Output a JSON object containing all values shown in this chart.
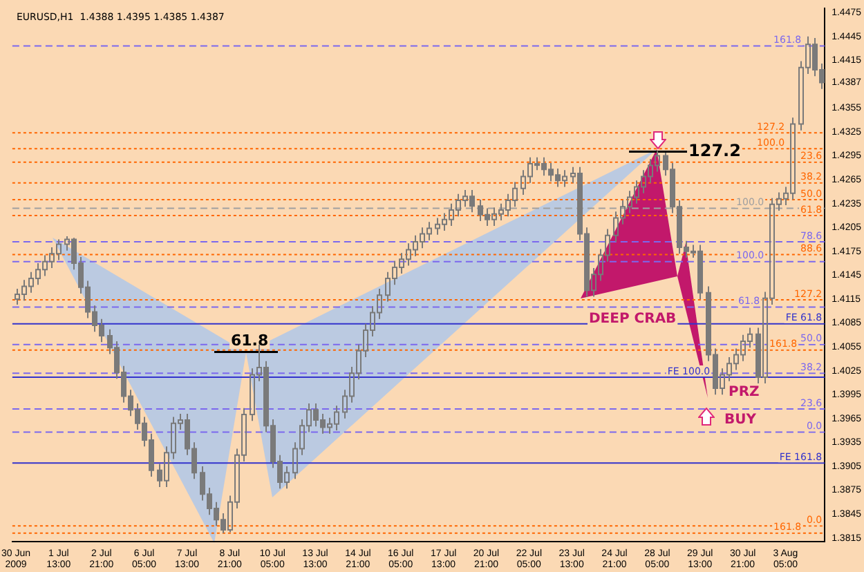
{
  "chart_data": {
    "type": "candlestick",
    "title": "EURUSD,H1  1.4388 1.4395 1.4385 1.4387",
    "color": "#7a7a7a",
    "categories": [
      "30 Jun 2009",
      null,
      null,
      null,
      null,
      null,
      "1 Jul 13:00",
      null,
      null,
      null,
      null,
      null,
      "2 Jul 21:00",
      null,
      null,
      null,
      null,
      null,
      "6 Jul 05:00",
      null,
      null,
      null,
      null,
      null,
      "7 Jul 13:00",
      null,
      null,
      null,
      null,
      null,
      "8 Jul 21:00",
      null,
      null,
      null,
      null,
      null,
      "10 Jul 05:00",
      null,
      null,
      null,
      null,
      null,
      "13 Jul 13:00",
      null,
      null,
      null,
      null,
      null,
      "14 Jul 21:00",
      null,
      null,
      null,
      null,
      null,
      "16 Jul 05:00",
      null,
      null,
      null,
      null,
      null,
      "17 Jul 13:00",
      null,
      null,
      null,
      null,
      null,
      "20 Jul 21:00",
      null,
      null,
      null,
      null,
      null,
      "22 Jul 05:00",
      null,
      null,
      null,
      null,
      null,
      "23 Jul 13:00",
      null,
      null,
      null,
      null,
      null,
      "24 Jul 21:00",
      null,
      null,
      null,
      null,
      null,
      "28 Jul 05:00",
      null,
      null,
      null,
      null,
      null,
      "29 Jul 13:00",
      null,
      null,
      null,
      null,
      null,
      "30 Jul 21:00",
      null,
      null,
      null,
      null,
      null,
      "3 Aug 05:00",
      null,
      null,
      null,
      null,
      null
    ],
    "ohlc": [
      [
        1.4115,
        1.4128,
        1.4108,
        1.4121
      ],
      [
        1.4121,
        1.4139,
        1.4113,
        1.4131
      ],
      [
        1.4131,
        1.4149,
        1.4123,
        1.4141
      ],
      [
        1.4141,
        1.416,
        1.4133,
        1.4152
      ],
      [
        1.4152,
        1.417,
        1.4144,
        1.4162
      ],
      [
        1.4162,
        1.418,
        1.4154,
        1.4172
      ],
      [
        1.4172,
        1.419,
        1.4164,
        1.4184
      ],
      [
        1.4184,
        1.4194,
        1.4176,
        1.419
      ],
      [
        1.419,
        1.4192,
        1.4152,
        1.416
      ],
      [
        1.416,
        1.4168,
        1.4122,
        1.413
      ],
      [
        1.413,
        1.4138,
        1.4091,
        1.4099
      ],
      [
        1.4099,
        1.4107,
        1.4074,
        1.4082
      ],
      [
        1.4082,
        1.409,
        1.4061,
        1.4069
      ],
      [
        1.4069,
        1.4077,
        1.4046,
        1.4054
      ],
      [
        1.4054,
        1.4062,
        1.4015,
        1.4023
      ],
      [
        1.4023,
        1.4031,
        1.3985,
        1.3993
      ],
      [
        1.3993,
        1.4001,
        1.3968,
        1.3976
      ],
      [
        1.3976,
        1.3984,
        1.3951,
        1.3959
      ],
      [
        1.3959,
        1.3967,
        1.393,
        1.3938
      ],
      [
        1.3938,
        1.3946,
        1.3892,
        1.39
      ],
      [
        1.39,
        1.3908,
        1.3879,
        1.3887
      ],
      [
        1.3887,
        1.393,
        1.3879,
        1.3922
      ],
      [
        1.3922,
        1.3967,
        1.3914,
        1.3959
      ],
      [
        1.3959,
        1.3971,
        1.3951,
        1.3963
      ],
      [
        1.3963,
        1.3971,
        1.3919,
        1.3927
      ],
      [
        1.3927,
        1.3935,
        1.3889,
        1.3897
      ],
      [
        1.3897,
        1.3905,
        1.3862,
        1.387
      ],
      [
        1.387,
        1.3878,
        1.3844,
        1.3852
      ],
      [
        1.3852,
        1.386,
        1.383,
        1.3838
      ],
      [
        1.3838,
        1.3846,
        1.3821,
        1.3825
      ],
      [
        1.3825,
        1.3868,
        1.3822,
        1.386
      ],
      [
        1.386,
        1.3927,
        1.3852,
        1.3919
      ],
      [
        1.3919,
        1.3978,
        1.3911,
        1.397
      ],
      [
        1.397,
        1.4028,
        1.3962,
        1.402
      ],
      [
        1.402,
        1.4058,
        1.4012,
        1.4029
      ],
      [
        1.4029,
        1.4037,
        1.3948,
        1.3956
      ],
      [
        1.3956,
        1.3964,
        1.3903,
        1.3911
      ],
      [
        1.3911,
        1.3919,
        1.3877,
        1.3885
      ],
      [
        1.3885,
        1.3905,
        1.3877,
        1.3897
      ],
      [
        1.3897,
        1.3935,
        1.3889,
        1.3927
      ],
      [
        1.3927,
        1.3964,
        1.3919,
        1.3956
      ],
      [
        1.3956,
        1.3984,
        1.3948,
        1.3976
      ],
      [
        1.3976,
        1.3984,
        1.3955,
        1.3963
      ],
      [
        1.3963,
        1.3971,
        1.3946,
        1.3954
      ],
      [
        1.3954,
        1.3966,
        1.3946,
        1.3958
      ],
      [
        1.3958,
        1.3981,
        1.395,
        1.3973
      ],
      [
        1.3973,
        1.4001,
        1.3965,
        1.3993
      ],
      [
        1.3993,
        1.403,
        1.3985,
        1.4022
      ],
      [
        1.4022,
        1.4058,
        1.4014,
        1.405
      ],
      [
        1.405,
        1.4084,
        1.4042,
        1.4076
      ],
      [
        1.4076,
        1.4106,
        1.4068,
        1.4098
      ],
      [
        1.4098,
        1.4128,
        1.409,
        1.412
      ],
      [
        1.412,
        1.4149,
        1.4112,
        1.4141
      ],
      [
        1.4141,
        1.4163,
        1.4133,
        1.4155
      ],
      [
        1.4155,
        1.4173,
        1.4147,
        1.4165
      ],
      [
        1.4165,
        1.4185,
        1.4157,
        1.4177
      ],
      [
        1.4177,
        1.4195,
        1.4169,
        1.4187
      ],
      [
        1.4187,
        1.4205,
        1.4179,
        1.4197
      ],
      [
        1.4197,
        1.4212,
        1.4189,
        1.4204
      ],
      [
        1.4204,
        1.4217,
        1.4196,
        1.4209
      ],
      [
        1.4209,
        1.4223,
        1.4201,
        1.4215
      ],
      [
        1.4215,
        1.4235,
        1.4207,
        1.4227
      ],
      [
        1.4227,
        1.4247,
        1.4219,
        1.4239
      ],
      [
        1.4239,
        1.4252,
        1.4231,
        1.4244
      ],
      [
        1.4244,
        1.4252,
        1.4224,
        1.4232
      ],
      [
        1.4232,
        1.424,
        1.4213,
        1.4221
      ],
      [
        1.4221,
        1.4229,
        1.4207,
        1.4215
      ],
      [
        1.4215,
        1.423,
        1.4207,
        1.4222
      ],
      [
        1.4222,
        1.4235,
        1.4214,
        1.4227
      ],
      [
        1.4227,
        1.4247,
        1.4219,
        1.4239
      ],
      [
        1.4239,
        1.4262,
        1.4231,
        1.4254
      ],
      [
        1.4254,
        1.4277,
        1.4246,
        1.4269
      ],
      [
        1.4269,
        1.4293,
        1.4261,
        1.4285
      ],
      [
        1.4285,
        1.4293,
        1.4277,
        1.4285
      ],
      [
        1.4285,
        1.4293,
        1.427,
        1.4278
      ],
      [
        1.4278,
        1.4286,
        1.4263,
        1.4271
      ],
      [
        1.4271,
        1.4279,
        1.4256,
        1.4264
      ],
      [
        1.4264,
        1.4277,
        1.4256,
        1.4269
      ],
      [
        1.4269,
        1.4281,
        1.4261,
        1.4273
      ],
      [
        1.4273,
        1.4281,
        1.4189,
        1.4197
      ],
      [
        1.4197,
        1.4205,
        1.4118,
        1.4126
      ],
      [
        1.4126,
        1.4154,
        1.4118,
        1.4146
      ],
      [
        1.4146,
        1.4178,
        1.4138,
        1.417
      ],
      [
        1.417,
        1.4203,
        1.4162,
        1.4195
      ],
      [
        1.4195,
        1.4225,
        1.4187,
        1.4217
      ],
      [
        1.4217,
        1.4239,
        1.4209,
        1.4231
      ],
      [
        1.4231,
        1.4251,
        1.4223,
        1.4243
      ],
      [
        1.4243,
        1.4264,
        1.4235,
        1.4256
      ],
      [
        1.4256,
        1.4277,
        1.4248,
        1.4269
      ],
      [
        1.4269,
        1.4291,
        1.4261,
        1.4283
      ],
      [
        1.4283,
        1.4301,
        1.4275,
        1.4295
      ],
      [
        1.4295,
        1.4299,
        1.427,
        1.4278
      ],
      [
        1.4278,
        1.4286,
        1.4223,
        1.4231
      ],
      [
        1.4231,
        1.4239,
        1.4172,
        1.418
      ],
      [
        1.418,
        1.4188,
        1.4167,
        1.4175
      ],
      [
        1.4175,
        1.4183,
        1.4167,
        1.4175
      ],
      [
        1.4175,
        1.4183,
        1.4115,
        1.4123
      ],
      [
        1.4123,
        1.4131,
        1.4037,
        1.4045
      ],
      [
        1.4045,
        1.4053,
        1.3995,
        1.4003
      ],
      [
        1.4003,
        1.4028,
        1.3995,
        1.402
      ],
      [
        1.402,
        1.4042,
        1.4012,
        1.4034
      ],
      [
        1.4034,
        1.4053,
        1.4026,
        1.4045
      ],
      [
        1.4045,
        1.407,
        1.4037,
        1.4062
      ],
      [
        1.4062,
        1.4079,
        1.4054,
        1.4071
      ],
      [
        1.4071,
        1.4079,
        1.4009,
        1.4017
      ],
      [
        1.4017,
        1.4124,
        1.4009,
        1.4116
      ],
      [
        1.4116,
        1.4242,
        1.4108,
        1.4234
      ],
      [
        1.4234,
        1.4249,
        1.4226,
        1.4241
      ],
      [
        1.4241,
        1.4256,
        1.4233,
        1.4248
      ],
      [
        1.4248,
        1.4343,
        1.424,
        1.4335
      ],
      [
        1.4335,
        1.4414,
        1.4327,
        1.4406
      ],
      [
        1.4406,
        1.4445,
        1.4398,
        1.4435
      ],
      [
        1.4435,
        1.4443,
        1.4395,
        1.4403
      ],
      [
        1.4403,
        1.4411,
        1.4379,
        1.4387
      ]
    ],
    "ylim": [
      1.381,
      1.448
    ],
    "yticks": [
      1.4475,
      1.4445,
      1.4415,
      {
        "value": 1.4387,
        "label": "1.4387"
      },
      1.4355,
      1.4325,
      1.4295,
      1.4265,
      1.4235,
      1.4205,
      1.4175,
      1.4145,
      1.4115,
      1.4085,
      1.4055,
      1.4025,
      1.3995,
      1.3965,
      1.3935,
      1.3905,
      1.3875,
      1.3845,
      1.3815
    ],
    "ref_lines": [
      {
        "axis": "y",
        "value": 1.4433,
        "color": "#7b68ee",
        "line_style": "dashed"
      },
      {
        "axis": "y",
        "value": 1.4324,
        "color": "#ff6600",
        "line_style": "dotted"
      },
      {
        "axis": "y",
        "value": 1.4304,
        "color": "#ff6600",
        "line_style": "dotted"
      },
      {
        "axis": "y",
        "value": 1.4287,
        "color": "#ff6600",
        "line_style": "dotted"
      },
      {
        "axis": "y",
        "value": 1.4261,
        "color": "#ff6600",
        "line_style": "dotted"
      },
      {
        "axis": "y",
        "value": 1.424,
        "color": "#ff6600",
        "line_style": "dotted"
      },
      {
        "axis": "y",
        "value": 1.4229,
        "color": "#a0a0a0",
        "line_style": "dashed"
      },
      {
        "axis": "y",
        "value": 1.422,
        "color": "#ff6600",
        "line_style": "dotted"
      },
      {
        "axis": "y",
        "value": 1.4187,
        "color": "#7b68ee",
        "line_style": "dashed"
      },
      {
        "axis": "y",
        "value": 1.4171,
        "color": "#ff6600",
        "line_style": "dotted"
      },
      {
        "axis": "y",
        "value": 1.4162,
        "color": "#7b68ee",
        "line_style": "dashed"
      },
      {
        "axis": "y",
        "value": 1.4114,
        "color": "#ff6600",
        "line_style": "dotted"
      },
      {
        "axis": "y",
        "value": 1.4105,
        "color": "#7b68ee",
        "line_style": "dashed"
      },
      {
        "axis": "y",
        "value": 1.4084,
        "color": "#3333cc",
        "line_style": "solid"
      },
      {
        "axis": "y",
        "value": 1.4058,
        "color": "#7b68ee",
        "line_style": "dashed"
      },
      {
        "axis": "y",
        "value": 1.4051,
        "color": "#ff6600",
        "line_style": "dotted"
      },
      {
        "axis": "y",
        "value": 1.4022,
        "color": "#7b68ee",
        "line_style": "dashed"
      },
      {
        "axis": "y",
        "value": 1.4017,
        "color": "#3333cc",
        "line_style": "solid"
      },
      {
        "axis": "y",
        "value": 1.3977,
        "color": "#7b68ee",
        "line_style": "dashed"
      },
      {
        "axis": "y",
        "value": 1.3948,
        "color": "#7b68ee",
        "line_style": "dashed"
      },
      {
        "axis": "y",
        "value": 1.3909,
        "color": "#3333cc",
        "line_style": "solid"
      },
      {
        "axis": "y",
        "value": 1.383,
        "color": "#ff6600",
        "line_style": "dotted"
      },
      {
        "axis": "y",
        "value": 1.3821,
        "color": "#ff6600",
        "line_style": "dotted"
      }
    ],
    "annotations": [
      "61.8",
      "127.2",
      "DEEP CRAB",
      "PRZ",
      "BUY",
      {
        "text": "161.8",
        "y": 1.4433
      },
      {
        "text": "127.2",
        "y": 1.4324
      },
      {
        "text": "100.0",
        "y": 1.4304
      },
      {
        "text": "23.6",
        "y": 1.4287
      },
      {
        "text": "38.2",
        "y": 1.4261
      },
      {
        "text": "50.0",
        "y": 1.424
      },
      {
        "text": "100.0",
        "y": 1.4229
      },
      {
        "text": "61.8",
        "y": 1.422
      },
      {
        "text": "78.6",
        "y": 1.4187
      },
      {
        "text": "88.6",
        "y": 1.4171
      },
      {
        "text": "100.0",
        "y": 1.4162
      },
      {
        "text": "127.2",
        "y": 1.4114
      },
      {
        "text": "61.8",
        "y": 1.4105
      },
      {
        "text": "FE 61.8",
        "y": 1.4084
      },
      {
        "text": "50.0",
        "y": 1.4058
      },
      {
        "text": "161.8",
        "y": 1.4051
      },
      {
        "text": "38.2",
        "y": 1.4022
      },
      {
        "text": "FE 100.0",
        "y": 1.4017
      },
      {
        "text": "23.6",
        "y": 1.3977
      },
      {
        "text": "0.0",
        "y": 1.3948
      },
      {
        "text": "FE 161.8",
        "y": 1.3909
      },
      {
        "text": "0.0",
        "y": 1.383
      },
      {
        "text": "161.8",
        "y": 1.3821
      }
    ],
    "grid": false,
    "legend": false
  }
}
